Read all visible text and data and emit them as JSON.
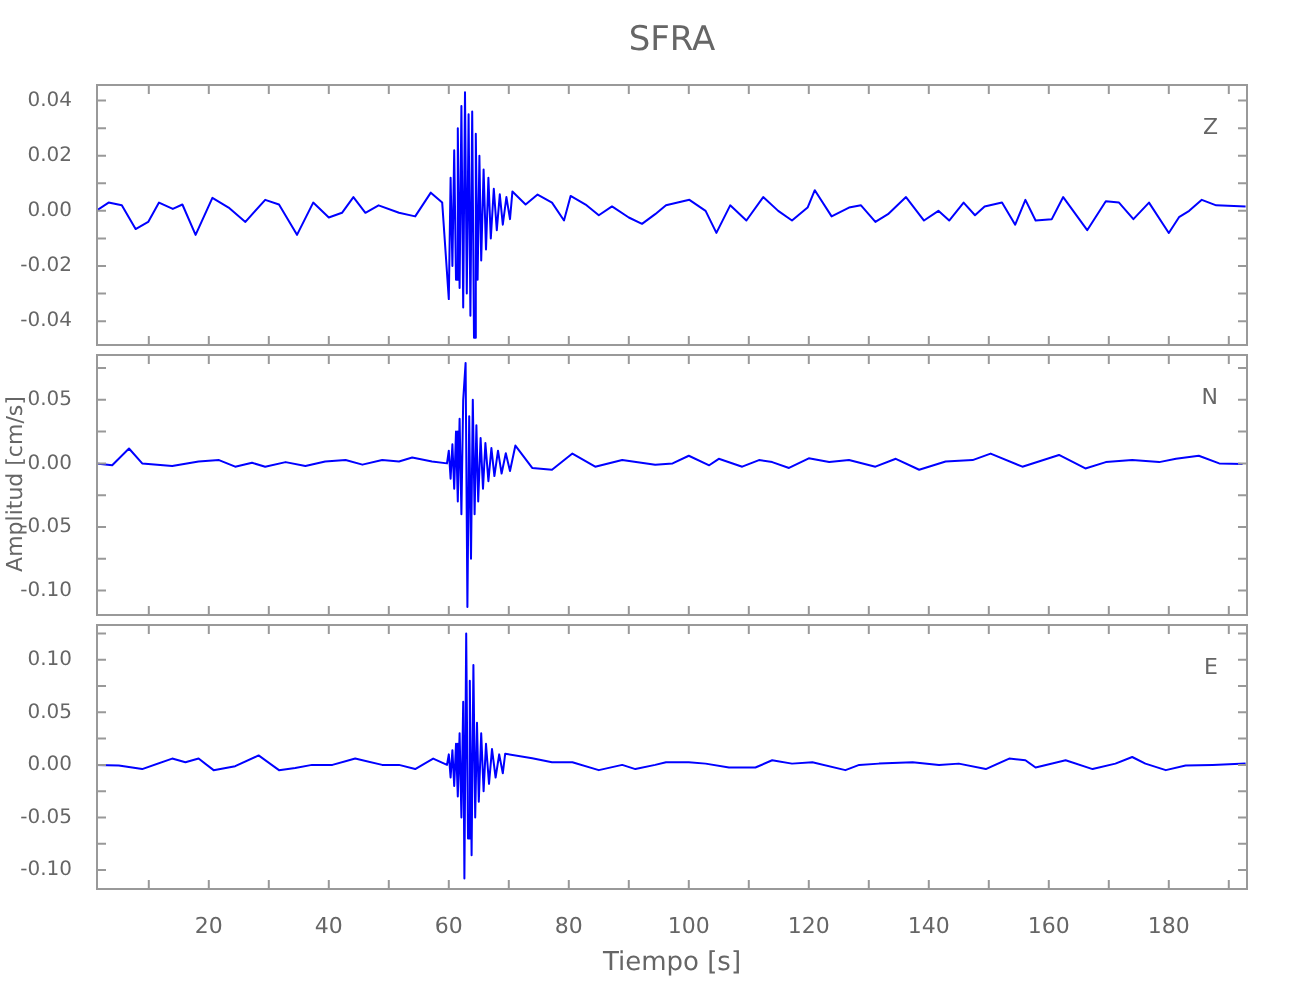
{
  "chart_data": [
    {
      "type": "line",
      "title": "SFRA",
      "annotations": [
        "Z"
      ],
      "tick_labels": "y",
      "grid": false,
      "legend": false,
      "marker": "none",
      "xlim": [
        1.2,
        193.2
      ],
      "xticks": [
        {
          "value": 10,
          "label": null
        },
        {
          "value": 20,
          "label": null
        },
        {
          "value": 30,
          "label": null
        },
        {
          "value": 40,
          "label": null
        },
        {
          "value": 50,
          "label": null
        },
        {
          "value": 60,
          "label": null
        },
        {
          "value": 70,
          "label": null
        },
        {
          "value": 80,
          "label": null
        },
        {
          "value": 90,
          "label": null
        },
        {
          "value": 100,
          "label": null
        },
        {
          "value": 110,
          "label": null
        },
        {
          "value": 120,
          "label": null
        },
        {
          "value": 130,
          "label": null
        },
        {
          "value": 140,
          "label": null
        },
        {
          "value": 150,
          "label": null
        },
        {
          "value": 160,
          "label": null
        },
        {
          "value": 170,
          "label": null
        },
        {
          "value": 180,
          "label": null
        },
        {
          "value": 190,
          "label": null
        }
      ],
      "ylim": [
        -0.049,
        0.046
      ],
      "yticks": [
        {
          "value": -0.04,
          "label": "-0.04"
        },
        {
          "value": -0.03,
          "label": null
        },
        {
          "value": -0.02,
          "label": "-0.02"
        },
        {
          "value": -0.01,
          "label": null
        },
        {
          "value": 0,
          "label": "0.00"
        },
        {
          "value": 0.01,
          "label": null
        },
        {
          "value": 0.02,
          "label": "0.02"
        },
        {
          "value": 0.03,
          "label": null
        },
        {
          "value": 0.04,
          "label": "0.04"
        }
      ],
      "x": [
        1.2,
        3.3,
        5.5,
        7.8,
        9.9,
        11.7,
        14,
        15.6,
        17.8,
        20.6,
        23.3,
        26.1,
        29.4,
        31.7,
        34.7,
        37.4,
        40,
        42.2,
        44.1,
        46.1,
        48.3,
        51.7,
        54.4,
        57,
        58.9,
        60,
        60.3,
        60.6,
        60.9,
        61.2,
        61.5,
        61.8,
        62.1,
        62.4,
        62.7,
        63,
        63.3,
        63.6,
        63.9,
        64.2,
        64.5,
        64.8,
        65.1,
        65.4,
        65.8,
        66.2,
        66.6,
        67,
        67.5,
        68,
        68.5,
        69,
        69.6,
        70.2,
        70.6,
        72.8,
        74.8,
        77.2,
        79.2,
        80.3,
        82.8,
        85,
        87.2,
        90,
        92.2,
        94.4,
        96.2,
        100.1,
        102.8,
        104.6,
        106.9,
        109.6,
        112.4,
        114.9,
        117.2,
        119.8,
        121,
        123.8,
        126.7,
        128.7,
        131.1,
        133.2,
        136.2,
        139.2,
        141.6,
        143.4,
        145.8,
        147.7,
        149.3,
        152.2,
        154.4,
        156.1,
        157.8,
        160.5,
        162.4,
        166.4,
        169.5,
        171.7,
        174.1,
        176.7,
        180,
        181.7,
        183.4,
        185.5,
        187.9,
        192.8
      ],
      "series": [
        {
          "color": "#0000ff",
          "values": [
            0,
            0.003,
            0.002,
            -0.0066,
            -0.004,
            0.003,
            0.0007,
            0.0023,
            -0.0087,
            0.0047,
            0.0012,
            -0.004,
            0.004,
            0.0023,
            -0.0087,
            0.003,
            -0.0024,
            -0.0007,
            0.005,
            -0.0007,
            0.002,
            -0.0007,
            -0.002,
            0.0066,
            0.003,
            -0.032,
            0.012,
            -0.02,
            0.022,
            -0.025,
            0.03,
            -0.028,
            0.038,
            -0.035,
            0.043,
            -0.03,
            0.035,
            -0.038,
            0.036,
            -0.046,
            0.028,
            -0.025,
            0.02,
            -0.018,
            0.015,
            -0.014,
            0.012,
            -0.01,
            0.008,
            -0.007,
            0.006,
            -0.005,
            0.005,
            -0.003,
            0.007,
            0.0023,
            0.0059,
            0.003,
            -0.0035,
            0.0054,
            0.0023,
            -0.0016,
            0.0016,
            -0.0024,
            -0.0047,
            -0.0012,
            0.002,
            0.004,
            0,
            -0.008,
            0.002,
            -0.0035,
            0.005,
            0,
            -0.0035,
            0.0012,
            0.0075,
            -0.002,
            0.0012,
            0.002,
            -0.004,
            -0.0012,
            0.005,
            -0.0035,
            0,
            -0.0035,
            0.003,
            -0.0016,
            0.0016,
            0.003,
            -0.005,
            0.004,
            -0.0035,
            -0.003,
            0.005,
            -0.007,
            0.0035,
            0.003,
            -0.003,
            0.003,
            -0.008,
            -0.0023,
            0,
            0.004,
            0.002,
            0.0016
          ]
        }
      ]
    },
    {
      "type": "line",
      "ylabel": "Amplitud [cm/s]",
      "annotations": [
        "N"
      ],
      "tick_labels": "y",
      "grid": false,
      "legend": false,
      "marker": "none",
      "xlim": [
        1.2,
        193.2
      ],
      "xticks": [
        {
          "value": 10,
          "label": null
        },
        {
          "value": 20,
          "label": null
        },
        {
          "value": 30,
          "label": null
        },
        {
          "value": 40,
          "label": null
        },
        {
          "value": 50,
          "label": null
        },
        {
          "value": 60,
          "label": null
        },
        {
          "value": 70,
          "label": null
        },
        {
          "value": 80,
          "label": null
        },
        {
          "value": 90,
          "label": null
        },
        {
          "value": 100,
          "label": null
        },
        {
          "value": 110,
          "label": null
        },
        {
          "value": 120,
          "label": null
        },
        {
          "value": 130,
          "label": null
        },
        {
          "value": 140,
          "label": null
        },
        {
          "value": 150,
          "label": null
        },
        {
          "value": 160,
          "label": null
        },
        {
          "value": 170,
          "label": null
        },
        {
          "value": 180,
          "label": null
        },
        {
          "value": 190,
          "label": null
        }
      ],
      "ylim": [
        -0.12,
        0.086
      ],
      "yticks": [
        {
          "value": -0.1,
          "label": "-0.10"
        },
        {
          "value": -0.075,
          "label": null
        },
        {
          "value": -0.05,
          "label": "-0.05"
        },
        {
          "value": -0.025,
          "label": null
        },
        {
          "value": 0,
          "label": "0.00"
        },
        {
          "value": 0.025,
          "label": null
        },
        {
          "value": 0.05,
          "label": "0.05"
        },
        {
          "value": 0.075,
          "label": null
        }
      ],
      "x": [
        1.2,
        3.9,
        6.7,
        8.9,
        13.9,
        18.3,
        21.7,
        24.4,
        27.2,
        29.4,
        32.8,
        36.1,
        39.4,
        42.8,
        45.6,
        48.9,
        51.7,
        53.9,
        57.2,
        59.7,
        60,
        60.3,
        60.6,
        60.9,
        61.2,
        61.5,
        61.8,
        62.1,
        62.4,
        62.8,
        63.1,
        63.4,
        63.7,
        64,
        64.3,
        64.6,
        64.9,
        65.3,
        65.7,
        66.1,
        66.6,
        67.1,
        67.6,
        68.2,
        68.8,
        69.5,
        70.2,
        71.1,
        73.9,
        77.2,
        80.6,
        84.4,
        88.9,
        94.4,
        97.3,
        100,
        103.4,
        105,
        108.9,
        111.7,
        113.9,
        116.7,
        120,
        123.4,
        126.7,
        131.1,
        134.5,
        138.4,
        142.8,
        147.3,
        150.3,
        155.6,
        161.7,
        166.1,
        169.5,
        173.9,
        178.4,
        181.2,
        185,
        188.4,
        192.3
      ],
      "series": [
        {
          "color": "#0000ff",
          "values": [
            0,
            -0.0015,
            0.0117,
            0,
            -0.002,
            0.0015,
            0.0026,
            -0.0026,
            0.0005,
            -0.0026,
            0.001,
            -0.002,
            0.0015,
            0.0026,
            -0.001,
            0.0026,
            0.0015,
            0.0046,
            0.0015,
            0,
            0.01,
            -0.012,
            0.015,
            -0.02,
            0.025,
            -0.03,
            0.035,
            -0.04,
            0.05,
            0.079,
            -0.113,
            0.037,
            -0.075,
            0.05,
            -0.04,
            0.03,
            -0.03,
            0.02,
            -0.02,
            0.016,
            -0.014,
            0.012,
            -0.01,
            0.01,
            -0.008,
            0.008,
            -0.006,
            0.014,
            -0.0036,
            -0.005,
            0.0077,
            -0.0026,
            0.0026,
            -0.001,
            0,
            0.006,
            -0.0015,
            0.0036,
            -0.0026,
            0.0026,
            0.001,
            -0.0036,
            0.004,
            0.001,
            0.0026,
            -0.0026,
            0.0036,
            -0.005,
            0.0015,
            0.0026,
            0.0077,
            -0.0026,
            0.0066,
            -0.004,
            0.001,
            0.0026,
            0.001,
            0.0036,
            0.006,
            0,
            -0.0005
          ]
        }
      ]
    },
    {
      "type": "line",
      "xlabel": "Tiempo [s]",
      "annotations": [
        "E"
      ],
      "grid": false,
      "legend": false,
      "marker": "none",
      "xlim": [
        1.2,
        193.2
      ],
      "xticks": [
        {
          "value": 10,
          "label": null
        },
        20,
        {
          "value": 30,
          "label": null
        },
        40,
        {
          "value": 50,
          "label": null
        },
        60,
        {
          "value": 70,
          "label": null
        },
        80,
        {
          "value": 90,
          "label": null
        },
        100,
        {
          "value": 110,
          "label": null
        },
        120,
        {
          "value": 130,
          "label": null
        },
        140,
        {
          "value": 150,
          "label": null
        },
        160,
        {
          "value": 170,
          "label": null
        },
        180,
        {
          "value": 190,
          "label": null
        }
      ],
      "ylim": [
        -0.119,
        0.134
      ],
      "yticks": [
        {
          "value": -0.1,
          "label": "-0.10"
        },
        {
          "value": -0.075,
          "label": null
        },
        {
          "value": -0.05,
          "label": "-0.05"
        },
        {
          "value": -0.025,
          "label": null
        },
        {
          "value": 0,
          "label": "0.00"
        },
        {
          "value": 0.025,
          "label": null
        },
        {
          "value": 0.05,
          "label": "0.05"
        },
        {
          "value": 0.075,
          "label": null
        },
        {
          "value": 0.1,
          "label": "0.10"
        },
        {
          "value": 0.125,
          "label": null
        }
      ],
      "x": [
        1.2,
        5,
        8.9,
        13.9,
        16.1,
        18.3,
        20.8,
        24.4,
        28.3,
        31.7,
        34.4,
        37.2,
        40.6,
        44.4,
        48.9,
        51.7,
        54.4,
        57.4,
        59.7,
        60,
        60.3,
        60.6,
        60.9,
        61.2,
        61.5,
        61.8,
        62.1,
        62.4,
        62.6,
        62.9,
        63.2,
        63.5,
        63.8,
        64.1,
        64.4,
        64.7,
        65,
        65.4,
        65.8,
        66.2,
        66.7,
        67.2,
        67.8,
        68.4,
        69,
        69.4,
        73.9,
        77.2,
        80.6,
        85,
        88.9,
        91.1,
        94.4,
        96.2,
        100,
        102.8,
        106.7,
        111.1,
        113.9,
        117.2,
        120.6,
        126.1,
        128.4,
        131.7,
        137.3,
        141.7,
        145,
        149.5,
        153.4,
        156.1,
        157.8,
        162.8,
        167.3,
        171.1,
        173.9,
        176.1,
        179.5,
        182.8,
        187.3,
        192.8
      ],
      "series": [
        {
          "color": "#0000ff",
          "values": [
            0,
            -0.0006,
            -0.004,
            0.006,
            0.0025,
            0.006,
            -0.005,
            -0.0012,
            0.009,
            -0.005,
            -0.003,
            0,
            0,
            0.006,
            0,
            0,
            -0.004,
            0.006,
            0,
            0.01,
            -0.012,
            0.014,
            -0.02,
            0.02,
            -0.03,
            0.03,
            -0.05,
            0.06,
            -0.108,
            0.125,
            -0.07,
            0.08,
            -0.086,
            0.095,
            -0.05,
            0.04,
            -0.035,
            0.03,
            -0.025,
            0.02,
            -0.018,
            0.015,
            -0.012,
            0.01,
            -0.008,
            0.0106,
            0.0063,
            0.0025,
            0.0025,
            -0.005,
            0,
            -0.004,
            0,
            0.0025,
            0.0025,
            0.0012,
            -0.0025,
            -0.0025,
            0.0044,
            0.0012,
            0.0025,
            -0.005,
            0,
            0.0012,
            0.0025,
            0,
            0.0012,
            -0.004,
            0.006,
            0.0044,
            -0.0025,
            0.0044,
            -0.004,
            0.0012,
            0.0075,
            0.0012,
            -0.005,
            -0.0006,
            0,
            0.0012
          ]
        }
      ]
    }
  ]
}
